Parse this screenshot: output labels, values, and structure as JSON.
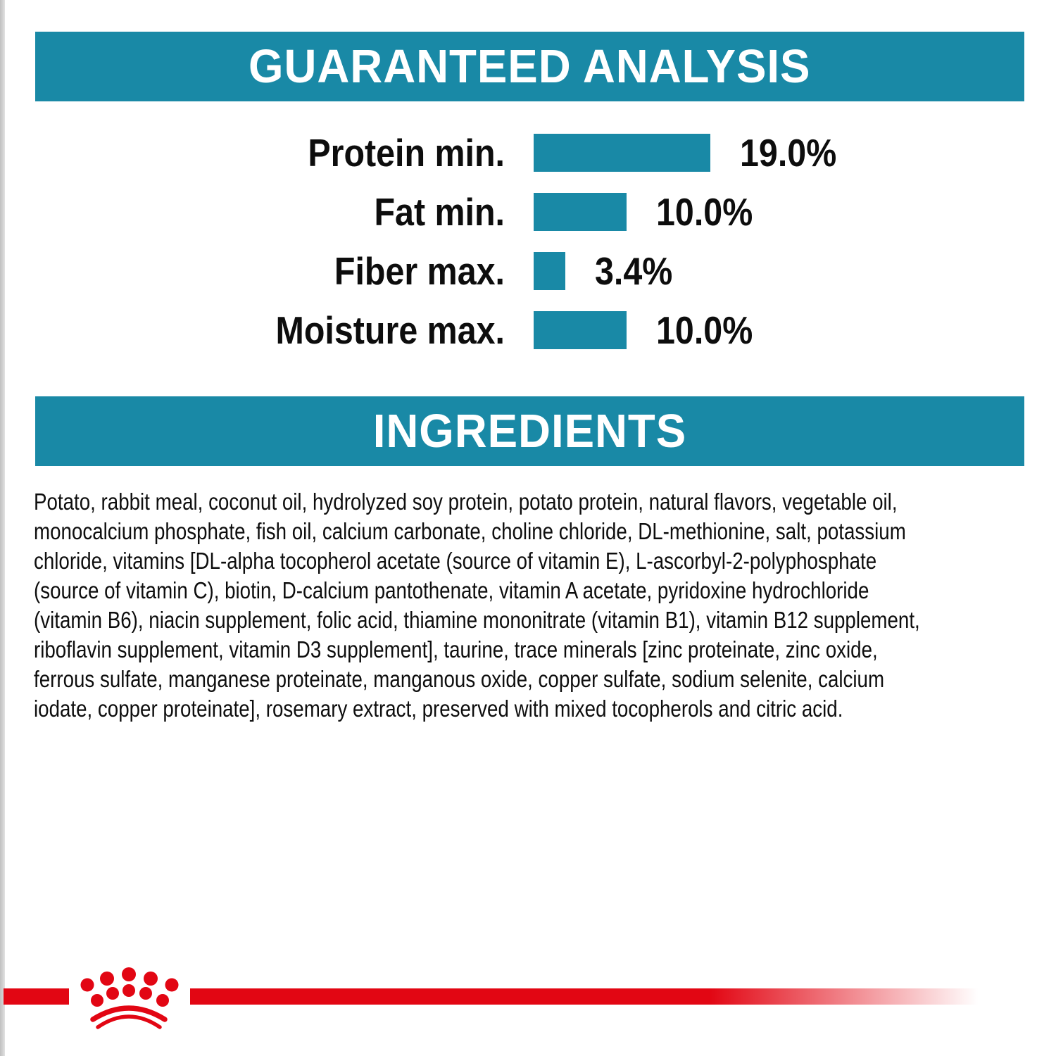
{
  "page": {
    "accent_teal": "#1989a6",
    "brand_red": "#e20613"
  },
  "guaranteed_analysis": {
    "title": "GUARANTEED ANALYSIS"
  },
  "chart_data": {
    "type": "bar",
    "orientation": "horizontal",
    "title": "GUARANTEED ANALYSIS",
    "categories": [
      "Protein min.",
      "Fat min.",
      "Fiber max.",
      "Moisture max."
    ],
    "values": [
      19.0,
      10.0,
      3.4,
      10.0
    ],
    "value_labels": [
      "19.0%",
      "10.0%",
      "3.4%",
      "10.0%"
    ],
    "xlim": [
      0,
      20
    ],
    "bar_color": "#1989a6",
    "grid": false,
    "legend": false
  },
  "ingredients": {
    "title": "INGREDIENTS",
    "lines": [
      "Potato, rabbit meal, coconut oil, hydrolyzed soy protein, potato protein, natural flavors, vegetable oil,",
      "monocalcium phosphate, fish oil, calcium carbonate, choline chloride, DL-methionine, salt, potassium",
      "chloride, vitamins [DL-alpha tocopherol acetate (source of vitamin E), L-ascorbyl-2-polyphosphate",
      "(source of vitamin C), biotin, D-calcium pantothenate, vitamin A acetate, pyridoxine hydrochloride",
      "(vitamin B6), niacin supplement, folic acid, thiamine mononitrate (vitamin B1), vitamin B12 supplement,",
      "riboflavin supplement, vitamin D3 supplement], taurine, trace minerals [zinc proteinate, zinc oxide,",
      "ferrous sulfate, manganese proteinate, manganous oxide, copper sulfate, sodium selenite, calcium",
      "iodate, copper proteinate], rosemary extract, preserved with mixed tocopherols and citric acid."
    ],
    "full_text": "Potato, rabbit meal, coconut oil, hydrolyzed soy protein, potato protein, natural flavors, vegetable oil, monocalcium phosphate, fish oil, calcium carbonate, choline chloride, DL-methionine, salt, potassium chloride, vitamins [DL-alpha tocopherol acetate (source of vitamin E), L-ascorbyl-2-polyphosphate (source of vitamin C), biotin, D-calcium pantothenate, vitamin A acetate, pyridoxine hydrochloride (vitamin B6), niacin supplement, folic acid, thiamine mononitrate (vitamin B1), vitamin B12 supplement, riboflavin supplement, vitamin D3 supplement], taurine, trace minerals [zinc proteinate, zinc oxide, ferrous sulfate, manganese proteinate, manganous oxide, copper sulfate, sodium selenite, calcium iodate, copper proteinate], rosemary extract, preserved with mixed tocopherols and citric acid."
  },
  "footer": {
    "logo": "royal-canin-crown"
  }
}
